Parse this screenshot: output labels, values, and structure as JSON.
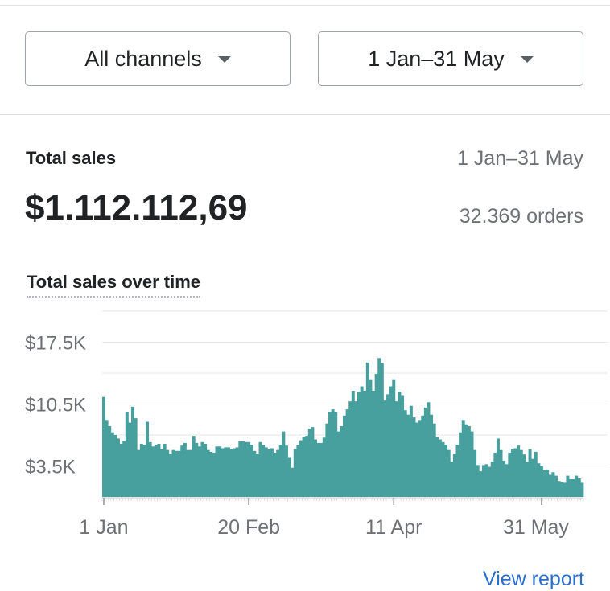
{
  "filters": {
    "channel_label": "All channels",
    "date_label": "1 Jan–31 May"
  },
  "summary": {
    "title": "Total sales",
    "date_range": "1 Jan–31 May",
    "total_value": "$1.112.112,69",
    "orders": "32.369 orders"
  },
  "chart_title": "Total sales over time",
  "view_report_label": "View report",
  "colors": {
    "bar": "#47a09e",
    "grid": "#e6e8ea",
    "link": "#2c6ecb"
  },
  "chart_data": {
    "type": "bar",
    "title": "Total sales over time",
    "x_start": "1 Jan",
    "x_end": "31 May",
    "x_tick_labels": [
      "1 Jan",
      "20 Feb",
      "11 Apr",
      "31 May"
    ],
    "y_tick_labels": [
      "$17.5K",
      "$10.5K",
      "$3.5K"
    ],
    "y_tick_values": [
      17500,
      10500,
      3500
    ],
    "ylim": [
      0,
      21000
    ],
    "grid": true,
    "values": [
      11300,
      8700,
      8000,
      7300,
      7000,
      6600,
      6000,
      6300,
      9600,
      8400,
      10200,
      8900,
      5300,
      6000,
      5900,
      8500,
      6200,
      5700,
      5900,
      6000,
      5400,
      6000,
      5300,
      4900,
      5300,
      5200,
      5200,
      5800,
      6100,
      5300,
      5300,
      6900,
      6100,
      5700,
      6200,
      6000,
      5300,
      5100,
      5000,
      5700,
      5700,
      5500,
      5600,
      5600,
      5400,
      5500,
      5600,
      6300,
      6300,
      6200,
      6200,
      5900,
      5200,
      4900,
      6200,
      5900,
      5600,
      5400,
      5500,
      5000,
      5300,
      5900,
      7400,
      5800,
      4500,
      3300,
      5400,
      5900,
      6400,
      6800,
      6900,
      7700,
      7900,
      6500,
      6100,
      6100,
      6700,
      8300,
      9600,
      9900,
      9600,
      7400,
      8000,
      9200,
      9900,
      10800,
      12000,
      10800,
      11900,
      12500,
      12000,
      15200,
      13300,
      12000,
      13900,
      15700,
      15100,
      10900,
      11600,
      12500,
      13300,
      10800,
      11900,
      11500,
      9800,
      9300,
      10300,
      9000,
      8400,
      8700,
      9200,
      10100,
      10700,
      9300,
      8300,
      6800,
      6500,
      6200,
      5900,
      5300,
      4000,
      4900,
      5900,
      7300,
      8700,
      8200,
      8000,
      7400,
      5300,
      3600,
      2900,
      3600,
      3700,
      3400,
      4000,
      5000,
      6600,
      5300,
      4100,
      3700,
      5000,
      5400,
      5500,
      5800,
      5300,
      4800,
      4000,
      5400,
      4300,
      5100,
      3800,
      3500,
      3000,
      3100,
      2500,
      2800,
      2400,
      1800,
      1700,
      1600,
      2400,
      2000,
      2000,
      2400,
      2100,
      1600
    ]
  }
}
